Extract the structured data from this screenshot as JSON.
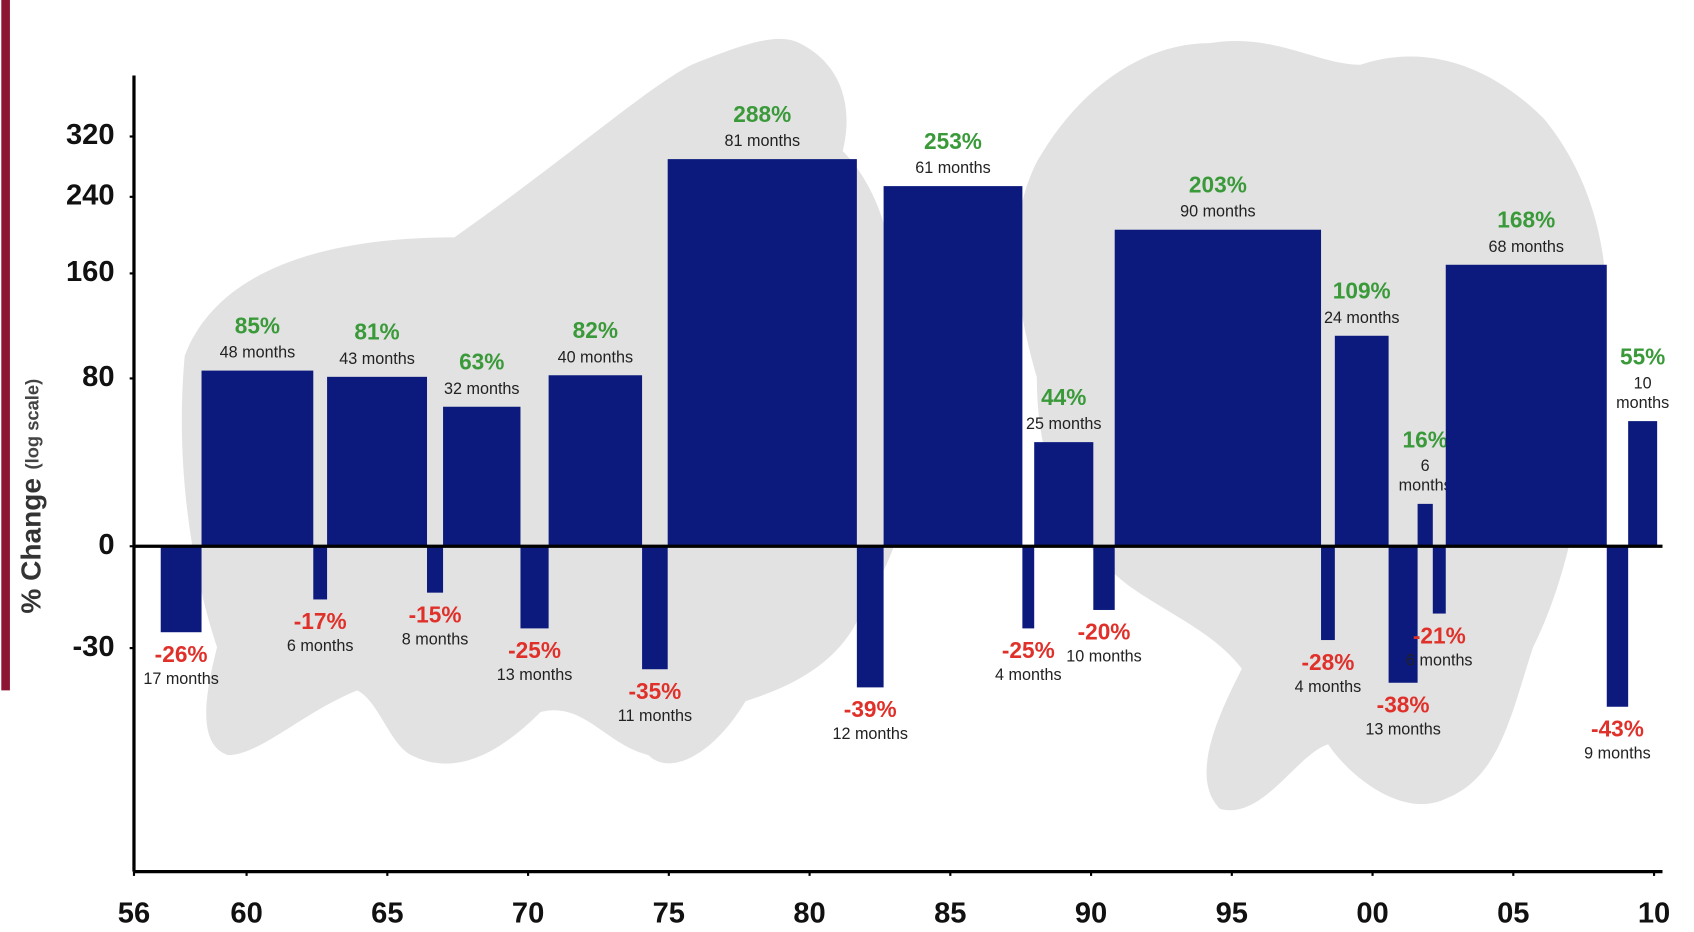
{
  "chart_data": {
    "type": "bar",
    "ylabel": "% Change",
    "ylabel_note": "(log scale)",
    "log_scale": true,
    "color": "#0b1a7c",
    "up_color": "#3a9a3a",
    "down_color": "#e0302a",
    "xlim": [
      1956,
      2010.3
    ],
    "xticks": [
      {
        "value": 1956,
        "label": "56"
      },
      {
        "value": 1960,
        "label": "60"
      },
      {
        "value": 1965,
        "label": "65"
      },
      {
        "value": 1970,
        "label": "70"
      },
      {
        "value": 1975,
        "label": "75"
      },
      {
        "value": 1980,
        "label": "80"
      },
      {
        "value": 1985,
        "label": "85"
      },
      {
        "value": 1990,
        "label": "90"
      },
      {
        "value": 1995,
        "label": "95"
      },
      {
        "value": 2000,
        "label": "00"
      },
      {
        "value": 2005,
        "label": "05"
      },
      {
        "value": 2010,
        "label": "10"
      }
    ],
    "ylim": [
      -68,
      420
    ],
    "yticks": [
      -30,
      0,
      80,
      160,
      240,
      320
    ],
    "markets": [
      {
        "start": 1956.95,
        "end": 1958.4,
        "value": -26,
        "value_label": "-26%",
        "months": "17 months"
      },
      {
        "start": 1958.4,
        "end": 1962.37,
        "value": 85,
        "value_label": "85%",
        "months": "48 months"
      },
      {
        "start": 1962.37,
        "end": 1962.86,
        "value": -17,
        "value_label": "-17%",
        "months": "6 months"
      },
      {
        "start": 1962.86,
        "end": 1966.41,
        "value": 81,
        "value_label": "81%",
        "months": "43 months"
      },
      {
        "start": 1966.41,
        "end": 1966.98,
        "value": -15,
        "value_label": "-15%",
        "months": "8 months"
      },
      {
        "start": 1966.98,
        "end": 1969.73,
        "value": 63,
        "value_label": "63%",
        "months": "32 months"
      },
      {
        "start": 1969.73,
        "end": 1970.73,
        "value": -25,
        "value_label": "-25%",
        "months": "13 months"
      },
      {
        "start": 1970.73,
        "end": 1974.05,
        "value": 82,
        "value_label": "82%",
        "months": "40 months"
      },
      {
        "start": 1974.05,
        "end": 1974.96,
        "value": -35,
        "value_label": "-35%",
        "months": "11 months"
      },
      {
        "start": 1974.96,
        "end": 1981.68,
        "value": 288,
        "value_label": "288%",
        "months": "81 months"
      },
      {
        "start": 1981.68,
        "end": 1982.63,
        "value": -39,
        "value_label": "-39%",
        "months": "12 months"
      },
      {
        "start": 1982.63,
        "end": 1987.56,
        "value": 253,
        "value_label": "253%",
        "months": "61 months"
      },
      {
        "start": 1987.56,
        "end": 1987.98,
        "value": -25,
        "value_label": "-25%",
        "months": "4 months"
      },
      {
        "start": 1987.98,
        "end": 1990.08,
        "value": 44,
        "value_label": "44%",
        "months": "25 months"
      },
      {
        "start": 1990.08,
        "end": 1990.84,
        "value": -20,
        "value_label": "-20%",
        "months": "10 months"
      },
      {
        "start": 1990.84,
        "end": 1998.17,
        "value": 203,
        "value_label": "203%",
        "months": "90 months"
      },
      {
        "start": 1998.17,
        "end": 1998.66,
        "value": -28,
        "value_label": "-28%",
        "months": "4 months"
      },
      {
        "start": 1998.66,
        "end": 2000.57,
        "value": 109,
        "value_label": "109%",
        "months": "24 months"
      },
      {
        "start": 2000.57,
        "end": 2001.6,
        "value": -38,
        "value_label": "-38%",
        "months": "13 months"
      },
      {
        "start": 2001.6,
        "end": 2002.14,
        "value": 16,
        "value_label": "16%",
        "months": "6 months"
      },
      {
        "start": 2002.14,
        "end": 2002.6,
        "value": -21,
        "value_label": "-21%",
        "months": "6 months"
      },
      {
        "start": 2002.6,
        "end": 2008.32,
        "value": 168,
        "value_label": "168%",
        "months": "68 months"
      },
      {
        "start": 2008.32,
        "end": 2009.08,
        "value": -43,
        "value_label": "-43%",
        "months": "9 months"
      },
      {
        "start": 2009.08,
        "end": 2010.11,
        "value": 55,
        "value_label": "55%",
        "months": "10 months"
      }
    ]
  }
}
